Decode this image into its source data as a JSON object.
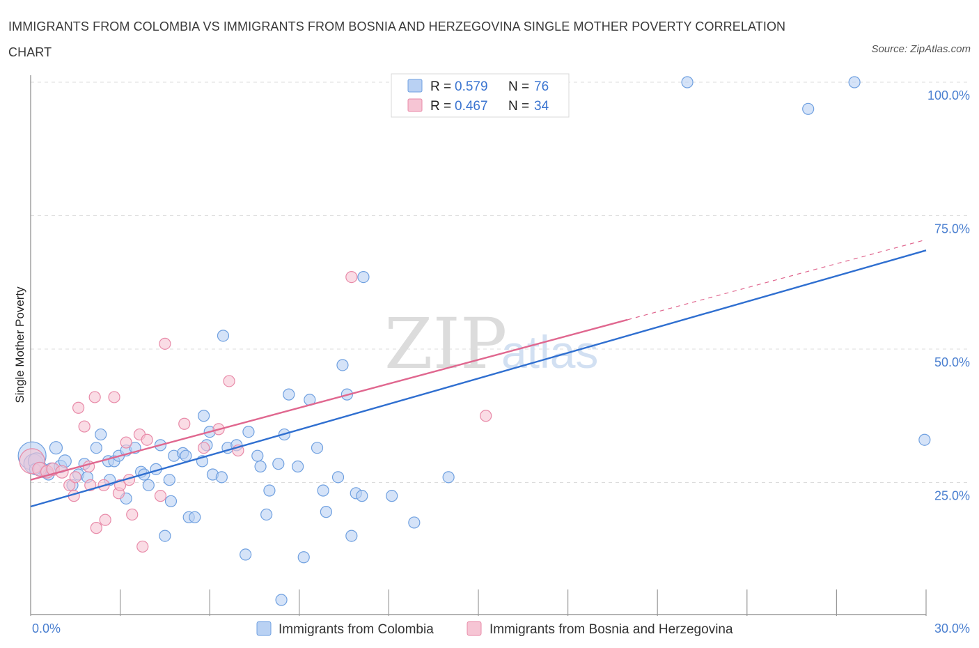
{
  "title": "IMMIGRANTS FROM COLOMBIA VS IMMIGRANTS FROM BOSNIA AND HERZEGOVINA SINGLE MOTHER POVERTY CORRELATION CHART",
  "source": "Source: ZipAtlas.com",
  "watermark": {
    "zip": "ZIP",
    "atlas": "atlas"
  },
  "chart_data": {
    "type": "scatter",
    "xlabel": "",
    "ylabel": "Single Mother Poverty",
    "xlim": [
      0,
      30
    ],
    "ylim": [
      0,
      100
    ],
    "x_tick_labels": [
      "0.0%",
      "30.0%"
    ],
    "y_ticks": [
      25,
      50,
      75,
      100
    ],
    "y_tick_labels": [
      "25.0%",
      "50.0%",
      "75.0%",
      "100.0%"
    ],
    "grid": true,
    "legend": [
      {
        "r_label": "R =",
        "r_value": "0.579",
        "n_label": "N =",
        "n_value": "76"
      },
      {
        "r_label": "R =",
        "r_value": "0.467",
        "n_label": "N =",
        "n_value": "34"
      }
    ],
    "series": [
      {
        "name": "Immigrants from Colombia",
        "color": "#6fa0e0",
        "fill": "#b9d1f3",
        "trend": {
          "x0": 0,
          "y0": 20.5,
          "x1": 30,
          "y1": 68.5,
          "solid_to": 30
        },
        "points": [
          [
            0.05,
            30.0,
            20
          ],
          [
            0.1,
            28.5,
            14
          ],
          [
            0.2,
            29.0,
            12
          ],
          [
            0.35,
            27.5,
            10
          ],
          [
            0.5,
            27.0,
            9
          ],
          [
            0.7,
            27.5,
            9
          ],
          [
            0.85,
            31.5,
            9
          ],
          [
            1.0,
            28.0,
            9
          ],
          [
            1.15,
            29.0,
            9
          ],
          [
            1.4,
            24.5,
            8
          ],
          [
            1.6,
            26.5,
            8
          ],
          [
            1.9,
            26.0,
            8
          ],
          [
            2.2,
            31.5,
            8
          ],
          [
            2.35,
            34.0,
            8
          ],
          [
            2.6,
            29.0,
            8
          ],
          [
            2.65,
            25.5,
            8
          ],
          [
            2.8,
            29.0,
            8
          ],
          [
            2.95,
            30.0,
            8
          ],
          [
            3.2,
            31.0,
            8
          ],
          [
            3.2,
            22.0,
            8
          ],
          [
            3.5,
            31.5,
            8
          ],
          [
            3.7,
            27.0,
            8
          ],
          [
            3.8,
            26.5,
            8
          ],
          [
            3.95,
            24.5,
            8
          ],
          [
            4.2,
            27.5,
            8
          ],
          [
            4.35,
            32.0,
            8
          ],
          [
            4.5,
            15.0,
            8
          ],
          [
            4.65,
            25.5,
            8
          ],
          [
            4.7,
            21.5,
            8
          ],
          [
            4.8,
            30.0,
            8
          ],
          [
            5.1,
            30.5,
            8
          ],
          [
            5.2,
            30.0,
            8
          ],
          [
            5.3,
            18.5,
            8
          ],
          [
            5.5,
            18.5,
            8
          ],
          [
            5.75,
            29.0,
            8
          ],
          [
            5.8,
            37.5,
            8
          ],
          [
            5.9,
            32.0,
            8
          ],
          [
            6.0,
            34.5,
            8
          ],
          [
            6.1,
            26.5,
            8
          ],
          [
            6.4,
            26.0,
            8
          ],
          [
            6.45,
            52.5,
            8
          ],
          [
            6.6,
            31.5,
            8
          ],
          [
            6.9,
            32.0,
            8
          ],
          [
            7.2,
            11.5,
            8
          ],
          [
            7.3,
            34.5,
            8
          ],
          [
            7.6,
            30.0,
            8
          ],
          [
            7.7,
            28.0,
            8
          ],
          [
            7.9,
            19.0,
            8
          ],
          [
            8.0,
            23.5,
            8
          ],
          [
            8.3,
            28.5,
            8
          ],
          [
            8.4,
            3.0,
            8
          ],
          [
            8.5,
            34.0,
            8
          ],
          [
            8.65,
            41.5,
            8
          ],
          [
            8.95,
            28.0,
            8
          ],
          [
            9.15,
            11.0,
            8
          ],
          [
            9.35,
            40.5,
            8
          ],
          [
            9.6,
            31.5,
            8
          ],
          [
            9.8,
            23.5,
            8
          ],
          [
            9.9,
            19.5,
            8
          ],
          [
            10.3,
            26.0,
            8
          ],
          [
            10.45,
            47.0,
            8
          ],
          [
            10.6,
            41.5,
            8
          ],
          [
            10.75,
            15.0,
            8
          ],
          [
            10.9,
            23.0,
            8
          ],
          [
            11.1,
            22.5,
            8
          ],
          [
            11.15,
            63.5,
            8
          ],
          [
            12.1,
            22.5,
            8
          ],
          [
            12.85,
            17.5,
            8
          ],
          [
            14.0,
            26.0,
            8
          ],
          [
            22.0,
            100.0,
            8
          ],
          [
            26.05,
            95.0,
            8
          ],
          [
            27.6,
            100.0,
            8
          ],
          [
            29.95,
            33.0,
            8
          ],
          [
            0.15,
            27.5,
            8
          ],
          [
            0.6,
            26.5,
            8
          ],
          [
            1.8,
            28.5,
            8
          ]
        ]
      },
      {
        "name": "Immigrants from Bosnia and Herzegovina",
        "color": "#e88aa8",
        "fill": "#f6c5d4",
        "trend": {
          "x0": 0,
          "y0": 25.5,
          "x1": 30,
          "y1": 70.5,
          "solid_to": 20.0
        },
        "points": [
          [
            0.05,
            29.0,
            18
          ],
          [
            0.3,
            27.5,
            10
          ],
          [
            0.55,
            27.0,
            9
          ],
          [
            0.75,
            27.5,
            9
          ],
          [
            1.05,
            27.0,
            9
          ],
          [
            1.3,
            24.5,
            8
          ],
          [
            1.45,
            22.5,
            8
          ],
          [
            1.5,
            26.0,
            8
          ],
          [
            1.6,
            39.0,
            8
          ],
          [
            1.8,
            35.5,
            8
          ],
          [
            1.95,
            28.0,
            8
          ],
          [
            2.0,
            24.5,
            8
          ],
          [
            2.15,
            41.0,
            8
          ],
          [
            2.2,
            16.5,
            8
          ],
          [
            2.45,
            24.5,
            8
          ],
          [
            2.5,
            18.0,
            8
          ],
          [
            2.8,
            41.0,
            8
          ],
          [
            2.95,
            23.0,
            8
          ],
          [
            3.0,
            24.5,
            8
          ],
          [
            3.2,
            32.5,
            8
          ],
          [
            3.3,
            25.5,
            8
          ],
          [
            3.4,
            19.0,
            8
          ],
          [
            3.65,
            34.0,
            8
          ],
          [
            3.75,
            13.0,
            8
          ],
          [
            3.9,
            33.0,
            8
          ],
          [
            4.35,
            22.5,
            8
          ],
          [
            4.5,
            51.0,
            8
          ],
          [
            5.15,
            36.0,
            8
          ],
          [
            5.8,
            31.5,
            8
          ],
          [
            6.3,
            35.0,
            8
          ],
          [
            6.65,
            44.0,
            8
          ],
          [
            6.95,
            31.0,
            8
          ],
          [
            10.75,
            63.5,
            8
          ],
          [
            15.25,
            37.5,
            8
          ]
        ]
      }
    ]
  },
  "bottom_legend": [
    {
      "label": "Immigrants from Colombia"
    },
    {
      "label": "Immigrants from Bosnia and Herzegovina"
    }
  ]
}
